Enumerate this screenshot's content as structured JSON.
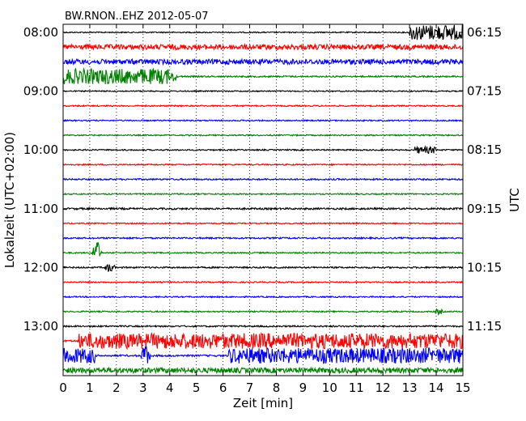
{
  "chart_data": {
    "type": "line",
    "title": "BW.RNON..EHZ 2012-05-07",
    "xlabel": "Zeit  [min]",
    "ylabel_left": "Lokalzeit (UTC+02:00)",
    "ylabel_right": "UTC",
    "xlim": [
      0,
      15
    ],
    "x_ticks": [
      "0",
      "1",
      "2",
      "3",
      "4",
      "5",
      "6",
      "7",
      "8",
      "9",
      "10",
      "11",
      "12",
      "13",
      "14",
      "15"
    ],
    "left_tick_labels": [
      "08:00",
      "09:00",
      "10:00",
      "11:00",
      "12:00",
      "13:00"
    ],
    "right_tick_labels": [
      "06:15",
      "07:15",
      "08:15",
      "09:15",
      "10:15",
      "11:15"
    ],
    "grid": "vertical dotted",
    "trace_colors": [
      "#000000",
      "#ff0000",
      "#0000ff",
      "#008000"
    ],
    "traces": [
      {
        "start": "08:00",
        "noise": 0.22,
        "events": [
          {
            "x0": 13.0,
            "x1": 15.0,
            "amp": 1.0
          }
        ]
      },
      {
        "start": "08:15",
        "noise": 1.0,
        "events": []
      },
      {
        "start": "08:30",
        "noise": 1.0,
        "events": []
      },
      {
        "start": "08:45",
        "noise": 0.3,
        "events": [
          {
            "x0": 0.0,
            "x1": 4.0,
            "amp": 1.0
          },
          {
            "x0": 4.0,
            "x1": 4.3,
            "amp": 0.8
          }
        ]
      },
      {
        "start": "09:00",
        "noise": 0.22,
        "events": []
      },
      {
        "start": "09:15",
        "noise": 0.25,
        "events": []
      },
      {
        "start": "09:30",
        "noise": 0.25,
        "events": []
      },
      {
        "start": "09:45",
        "noise": 0.25,
        "events": []
      },
      {
        "start": "10:00",
        "noise": 0.25,
        "events": [
          {
            "x0": 13.2,
            "x1": 14.0,
            "amp": 0.45
          }
        ]
      },
      {
        "start": "10:15",
        "noise": 0.25,
        "events": []
      },
      {
        "start": "10:30",
        "noise": 0.3,
        "events": []
      },
      {
        "start": "10:45",
        "noise": 0.25,
        "events": []
      },
      {
        "start": "11:00",
        "noise": 0.35,
        "events": []
      },
      {
        "start": "11:15",
        "noise": 0.25,
        "events": []
      },
      {
        "start": "11:30",
        "noise": 0.3,
        "events": []
      },
      {
        "start": "11:45",
        "noise": 0.25,
        "events": [
          {
            "x0": 1.05,
            "x1": 1.45,
            "amp": 1.6
          }
        ]
      },
      {
        "start": "12:00",
        "noise": 0.3,
        "events": [
          {
            "x0": 1.5,
            "x1": 2.0,
            "amp": 0.6
          }
        ]
      },
      {
        "start": "12:15",
        "noise": 0.25,
        "events": []
      },
      {
        "start": "12:30",
        "noise": 0.25,
        "events": []
      },
      {
        "start": "12:45",
        "noise": 0.25,
        "events": [
          {
            "x0": 13.9,
            "x1": 14.3,
            "amp": 0.4
          }
        ]
      },
      {
        "start": "13:00",
        "noise": 0.3,
        "events": []
      },
      {
        "start": "13:15",
        "noise": 0.35,
        "events": [
          {
            "x0": 0.6,
            "x1": 15.0,
            "amp": 1.0
          }
        ]
      },
      {
        "start": "13:30",
        "noise": 0.35,
        "events": [
          {
            "x0": 0.0,
            "x1": 1.2,
            "amp": 1.0
          },
          {
            "x0": 2.9,
            "x1": 3.3,
            "amp": 1.6
          },
          {
            "x0": 6.2,
            "x1": 15.0,
            "amp": 1.0
          }
        ]
      },
      {
        "start": "13:45",
        "noise": 1.0,
        "events": []
      }
    ]
  }
}
